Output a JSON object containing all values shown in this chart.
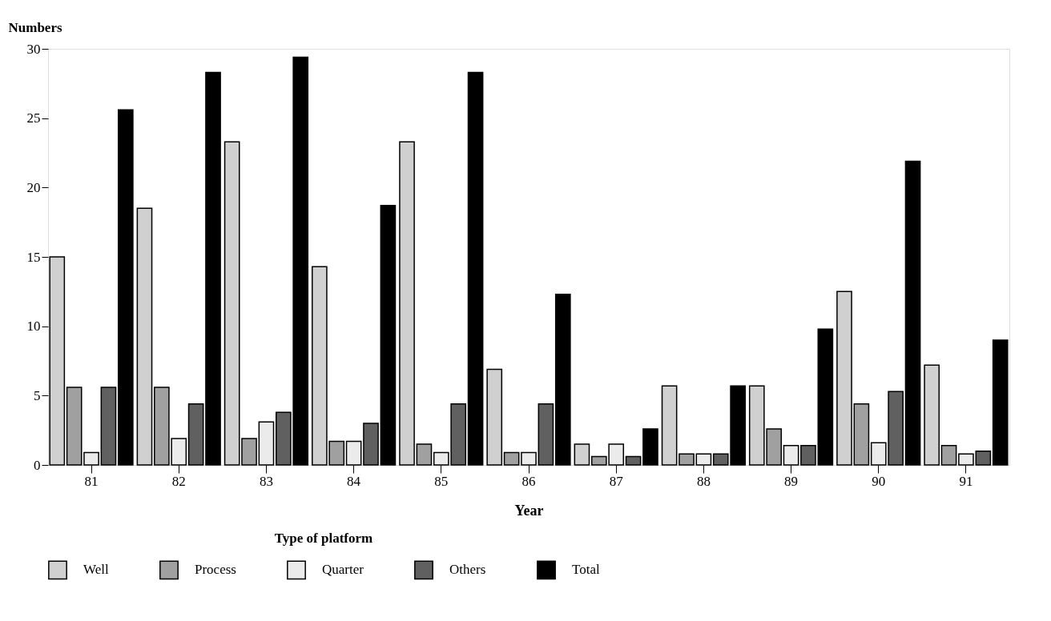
{
  "chart_data": {
    "type": "bar",
    "xlabel": "Year",
    "ylabel": "Numbers",
    "legend_title": "Type of platform",
    "categories": [
      "81",
      "82",
      "83",
      "84",
      "85",
      "86",
      "87",
      "88",
      "89",
      "90",
      "91"
    ],
    "series": [
      {
        "name": "Well",
        "color": "#d0d0d0",
        "values": [
          15,
          18.5,
          23.3,
          14.3,
          23.3,
          6.9,
          1.5,
          5.7,
          5.7,
          12.5,
          7.2
        ]
      },
      {
        "name": "Process",
        "color": "#a0a0a0",
        "values": [
          5.6,
          5.6,
          1.9,
          1.7,
          1.5,
          0.9,
          0.6,
          0.8,
          2.6,
          4.4,
          1.4
        ]
      },
      {
        "name": "Quarter",
        "color": "#ebebeb",
        "values": [
          0.9,
          1.9,
          3.1,
          1.7,
          0.9,
          0.9,
          1.5,
          0.8,
          1.4,
          1.6,
          0.8
        ]
      },
      {
        "name": "Others",
        "color": "#606060",
        "values": [
          5.6,
          4.4,
          3.8,
          3.0,
          4.4,
          4.4,
          0.6,
          0.8,
          1.4,
          5.3,
          1.0
        ]
      },
      {
        "name": "Total",
        "color": "#000000",
        "values": [
          25.6,
          28.3,
          29.4,
          18.7,
          28.3,
          12.3,
          2.6,
          5.7,
          9.8,
          21.9,
          9.0
        ]
      }
    ],
    "ylim": [
      0,
      30
    ],
    "yticks": [
      0,
      5,
      10,
      15,
      20,
      25,
      30
    ],
    "grid": false,
    "legend": "bottom"
  }
}
